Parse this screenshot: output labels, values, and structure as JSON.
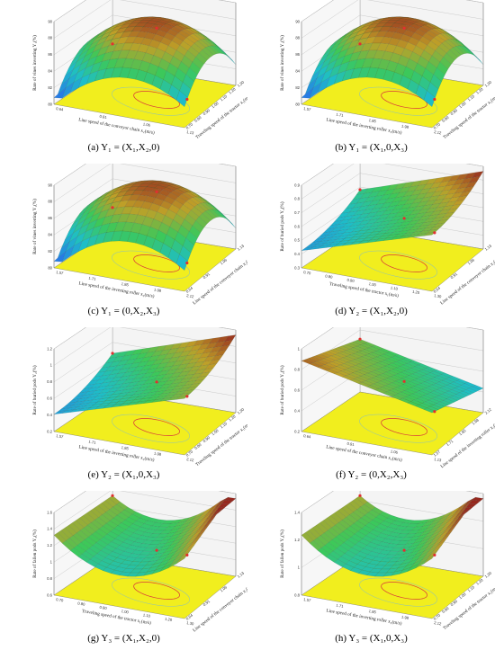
{
  "chart_data": [
    {
      "id": "a",
      "type": "surface3d",
      "caption": "(a) Y₁ = (X₁,X₂,0)",
      "zlabel": "Rate of vines inverting Y₁(%)",
      "xlabel": "Line speed of the conveyor chain x₂(m/s)",
      "ylabel": "Traveling speed of the tractor x₁(m/s)",
      "zticks": [
        "80",
        "82",
        "84",
        "86",
        "88",
        "90"
      ],
      "xticks": [
        "0.64",
        "0.91",
        "1.06",
        "1.13"
      ],
      "yticks": [
        "0.70",
        "0.80",
        "0.90",
        "1.00",
        "1.10",
        "1.20",
        "1.30"
      ],
      "shape": "peak",
      "zlim": [
        80,
        90
      ]
    },
    {
      "id": "b",
      "type": "surface3d",
      "caption": "(b) Y₁ = (X₁,0,X₃)",
      "zlabel": "Rate of vines inverting Y₁(%)",
      "xlabel": "Line speed of the inverting roller x₃(m/s)",
      "ylabel": "Traveling speed of the tractor x₁(m/s)",
      "zticks": [
        "80",
        "82",
        "84",
        "86",
        "88",
        "90"
      ],
      "xticks": [
        "1.57",
        "1.71",
        "1.85",
        "1.98",
        "2.12"
      ],
      "yticks": [
        "0.70",
        "0.80",
        "0.90",
        "1.00",
        "1.10",
        "1.20",
        "1.30"
      ],
      "shape": "peak",
      "zlim": [
        80,
        90
      ]
    },
    {
      "id": "c",
      "type": "surface3d",
      "caption": "(c) Y₁ = (0,X₂,X₃)",
      "zlabel": "Rate of vines inverting Y₁(%)",
      "xlabel": "Line speed of the inverting roller x₃(m/s)",
      "ylabel": "Line speed of the conveyor chain x₂(m/s)",
      "zticks": [
        "80",
        "82",
        "84",
        "86",
        "88",
        "90"
      ],
      "xticks": [
        "1.57",
        "1.71",
        "1.85",
        "1.98",
        "2.12"
      ],
      "yticks": [
        "0.64",
        "0.91",
        "1.06",
        "1.13"
      ],
      "shape": "peak",
      "zlim": [
        80,
        90
      ]
    },
    {
      "id": "d",
      "type": "surface3d",
      "caption": "(d) Y₂ = (X₁,X₂,0)",
      "zlabel": "Rate of buried pods Y₂(%)",
      "xlabel": "Traveling speed of the tractor x₁(m/s)",
      "ylabel": "Line speed of the conveyor chain x₂(m/s)",
      "zticks": [
        "0.3",
        "0.4",
        "0.5",
        "0.6",
        "0.7",
        "0.8",
        "0.9"
      ],
      "xticks": [
        "0.70",
        "0.80",
        "0.90",
        "1.00",
        "1.10",
        "1.20",
        "1.30"
      ],
      "yticks": [
        "0.64",
        "0.91",
        "1.06",
        "1.13"
      ],
      "shape": "rise",
      "zlim": [
        0.3,
        0.9
      ]
    },
    {
      "id": "e",
      "type": "surface3d",
      "caption": "(e) Y₂ = (X₁,0,X₃)",
      "zlabel": "Rate of buried pods Y₂(%)",
      "xlabel": "Line speed of the inverting roller x₃(m/s)",
      "ylabel": "Traveling speed of the tractor x₁(m/s)",
      "zticks": [
        "0.2",
        "0.4",
        "0.6",
        "0.8",
        "1",
        "1.2"
      ],
      "xticks": [
        "1.57",
        "1.71",
        "1.85",
        "1.98",
        "2.12"
      ],
      "yticks": [
        "0.70",
        "0.80",
        "0.90",
        "1.00",
        "1.10",
        "1.20",
        "1.30"
      ],
      "shape": "rise",
      "zlim": [
        0.2,
        1.2
      ]
    },
    {
      "id": "f",
      "type": "surface3d",
      "caption": "(f) Y₂ = (0,X₂,X₃)",
      "zlabel": "Rate of buried pods Y₂(%)",
      "xlabel": "Line speed of the conveyor chain x₂(m/s)",
      "ylabel": "Line speed of the inverting roller x₃(m/s)",
      "zticks": [
        "0.2",
        "0.4",
        "0.6",
        "0.8",
        "1"
      ],
      "xticks": [
        "0.64",
        "0.91",
        "1.06",
        "1.13"
      ],
      "yticks": [
        "1.57",
        "1.71",
        "1.85",
        "1.98",
        "2.12"
      ],
      "shape": "fall",
      "zlim": [
        0.2,
        1
      ]
    },
    {
      "id": "g",
      "type": "surface3d",
      "caption": "(g) Y₃ = (X₁,X₂,0)",
      "zlabel": "Rate of fallen pods Y₃(%)",
      "xlabel": "Traveling speed of the tractor x₁(m/s)",
      "ylabel": "Line speed of the conveyor chain x₂(m/s)",
      "zticks": [
        "0.6",
        "0.8",
        "1",
        "1.2",
        "1.4",
        "1.6"
      ],
      "xticks": [
        "0.70",
        "0.80",
        "0.90",
        "1.00",
        "1.10",
        "1.20",
        "1.30"
      ],
      "yticks": [
        "0.64",
        "0.91",
        "1.06",
        "1.13"
      ],
      "shape": "bowl",
      "zlim": [
        0.6,
        1.6
      ]
    },
    {
      "id": "h",
      "type": "surface3d",
      "caption": "(h) Y₃ = (X₁,0,X₃)",
      "zlabel": "Rate of fallen pods Y₃(%)",
      "xlabel": "Line speed of the inverting roller x₃(m/s)",
      "ylabel": "Traveling speed of the tractor x₁(m/s)",
      "zticks": [
        "0.8",
        "1",
        "1.2",
        "1.4"
      ],
      "xticks": [
        "1.57",
        "1.71",
        "1.85",
        "1.98",
        "2.12"
      ],
      "yticks": [
        "0.70",
        "0.80",
        "0.90",
        "1.00",
        "1.10",
        "1.20",
        "1.30"
      ],
      "shape": "bowl",
      "zlim": [
        0.8,
        1.4
      ]
    }
  ]
}
